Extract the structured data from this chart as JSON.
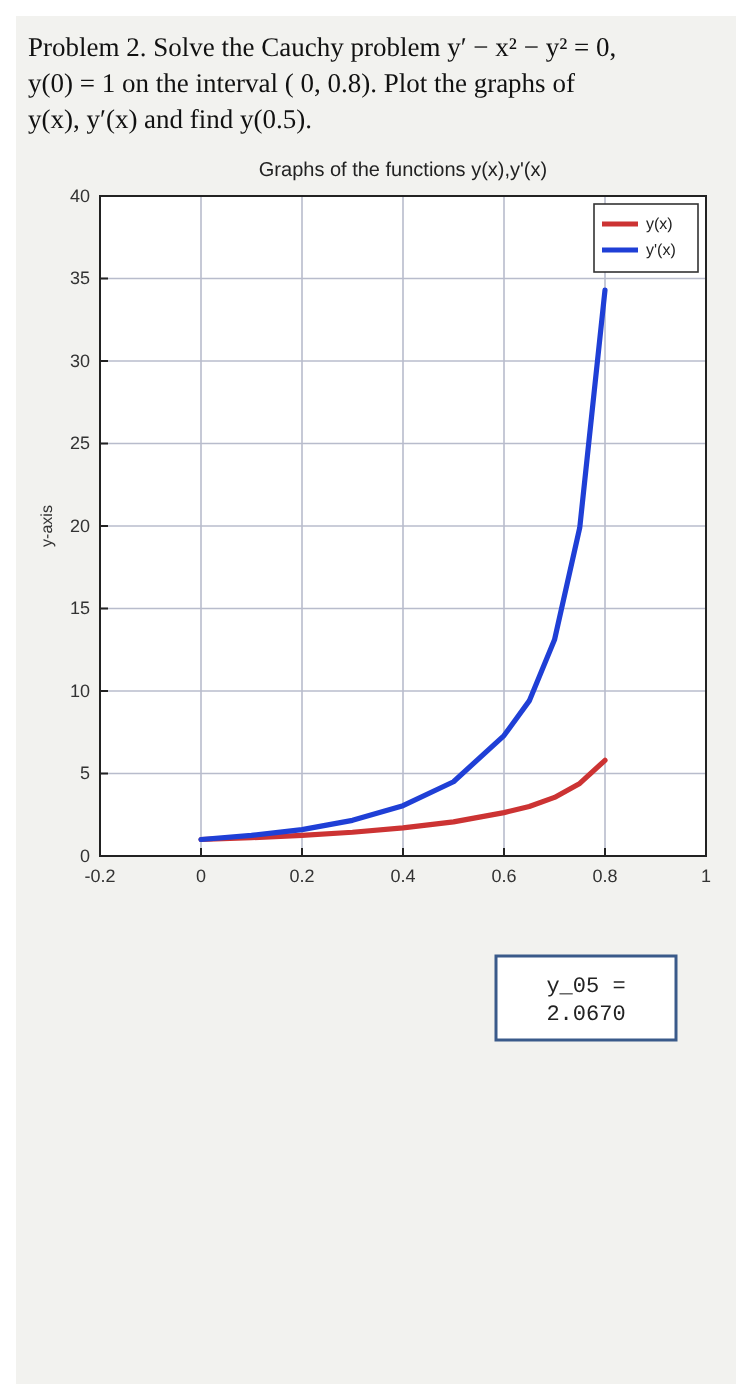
{
  "chart_data": {
    "type": "line",
    "title": "Graphs of the functions y(x),y'(x)",
    "ylabel": "y-axis",
    "annotations": [
      "Problem 2. Solve the Cauchy problem y′ − x² − y² = 0, y(0) = 1 on the interval ( 0, 0.8). Plot the graphs of y(x), y′(x) and find y(0.5).",
      "y_05 =\n2.0670"
    ],
    "x": [
      0,
      0.1,
      0.2,
      0.3,
      0.4,
      0.5,
      0.6,
      0.65,
      0.7,
      0.75,
      0.8
    ],
    "series": [
      {
        "name": "y(x)",
        "color": "#cc3333",
        "values": [
          1,
          1.11,
          1.25,
          1.44,
          1.7,
          2.07,
          2.63,
          3.0,
          3.55,
          4.4,
          5.8
        ]
      },
      {
        "name": "y'(x)",
        "color": "#1f3fd6",
        "values": [
          1,
          1.25,
          1.6,
          2.16,
          3.05,
          4.5,
          7.3,
          9.4,
          13.1,
          19.9,
          34.3
        ]
      }
    ],
    "xlim": [
      -0.2,
      1
    ],
    "xticks": [
      -0.2,
      0,
      0.2,
      0.4,
      0.6,
      0.8,
      1
    ],
    "ylim": [
      0,
      40
    ],
    "yticks": [
      0,
      5,
      10,
      15,
      20,
      25,
      30,
      35,
      40
    ],
    "grid": true,
    "legend": "top right",
    "line_style": "solid",
    "marker": "none"
  }
}
